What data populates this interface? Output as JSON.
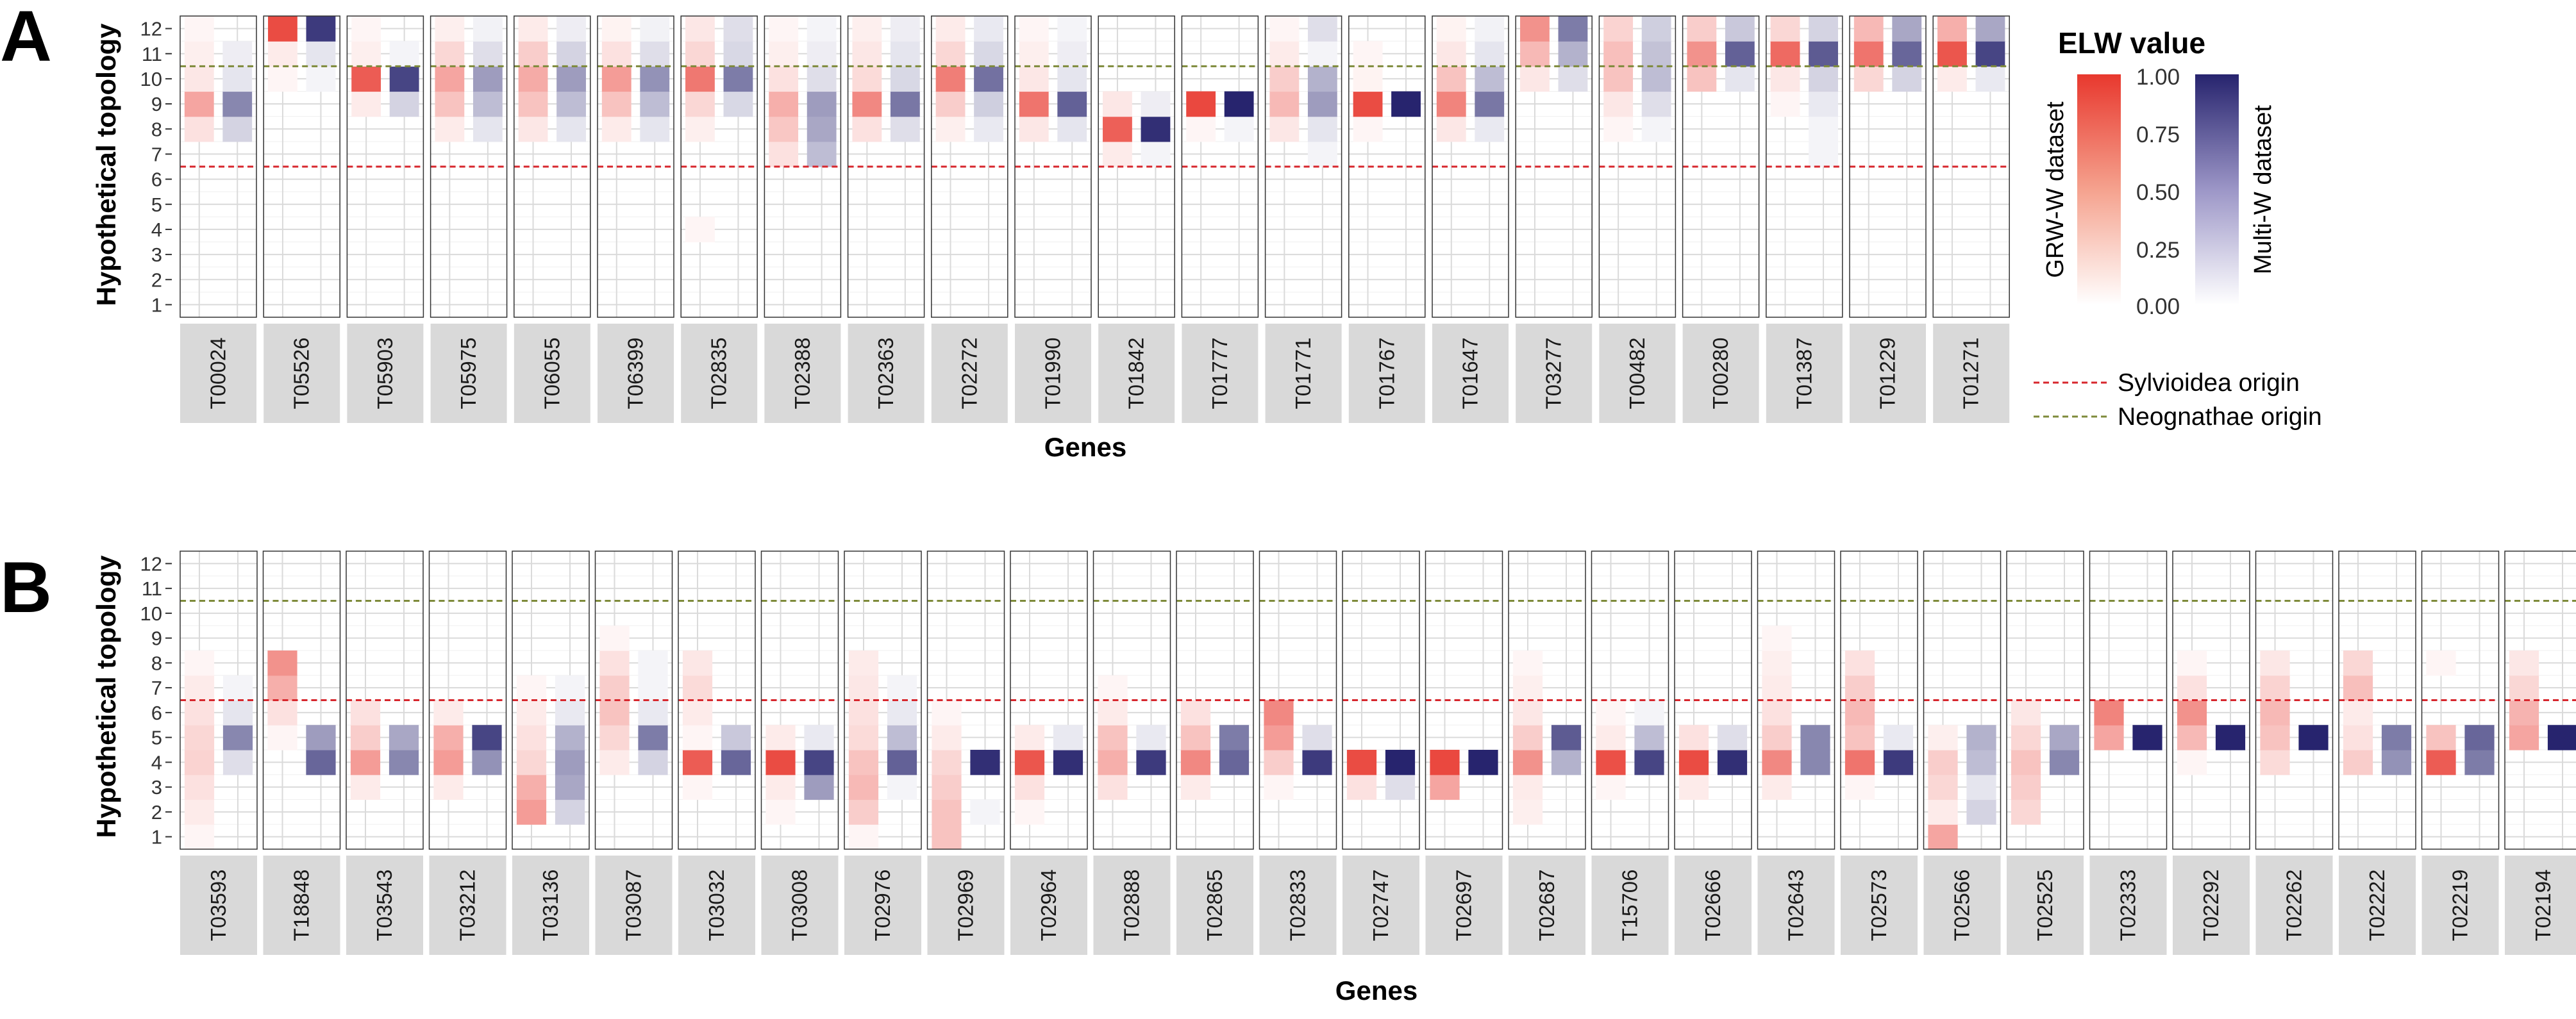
{
  "figure": {
    "panel_labels": [
      "A",
      "B"
    ],
    "x_axis_title": "Genes",
    "y_axis_title": "Hypothetical topology",
    "y_ticks": [
      1,
      2,
      3,
      4,
      5,
      6,
      7,
      8,
      9,
      10,
      11,
      12
    ]
  },
  "legend": {
    "title": "ELW value",
    "ticks": [
      "1.00",
      "0.75",
      "0.50",
      "0.25",
      "0.00"
    ],
    "grw_label": "GRW-W dataset",
    "multi_label": "Multi-W dataset",
    "grw_color": "#E8382E",
    "multi_color": "#27246E",
    "sylvioidea_label": "Sylvioidea origin",
    "neognathae_label": "Neognathae origin",
    "sylvioidea_color": "#D7262C",
    "neognathae_color": "#7E8A3A"
  },
  "chart_data": [
    {
      "type": "heatmap",
      "panel": "A",
      "xlabel": "Genes",
      "ylabel": "Hypothetical topology",
      "ylim": [
        0.5,
        12.5
      ],
      "reference_lines": {
        "sylvioidea_origin": 6.5,
        "neognathae_origin": 10.5
      },
      "genes": [
        "T00024",
        "T05526",
        "T05903",
        "T05975",
        "T06055",
        "T06399",
        "T02835",
        "T02388",
        "T02363",
        "T02272",
        "T01990",
        "T01842",
        "T01777",
        "T01771",
        "T01767",
        "T01647",
        "T03277",
        "T00482",
        "T00280",
        "T01387",
        "T01229",
        "T01271"
      ],
      "series": [
        {
          "name": "GRW-W dataset",
          "values": [
            {
              "12": 0.05,
              "11": 0.08,
              "10": 0.12,
              "9": 0.45,
              "8": 0.15
            },
            {
              "12": 0.9,
              "11": 0.1,
              "10": 0.05
            },
            {
              "12": 0.05,
              "11": 0.08,
              "10": 0.82,
              "9": 0.1
            },
            {
              "12": 0.08,
              "11": 0.2,
              "10": 0.45,
              "9": 0.3,
              "8": 0.1
            },
            {
              "12": 0.1,
              "11": 0.25,
              "10": 0.42,
              "9": 0.3,
              "8": 0.12
            },
            {
              "12": 0.06,
              "11": 0.15,
              "10": 0.5,
              "9": 0.3,
              "8": 0.1
            },
            {
              "12": 0.12,
              "11": 0.2,
              "10": 0.68,
              "9": 0.2,
              "8": 0.08,
              "4": 0.05
            },
            {
              "12": 0.05,
              "11": 0.08,
              "10": 0.15,
              "9": 0.4,
              "8": 0.28,
              "7": 0.15
            },
            {
              "12": 0.08,
              "11": 0.12,
              "10": 0.18,
              "9": 0.6,
              "8": 0.15
            },
            {
              "12": 0.1,
              "11": 0.2,
              "10": 0.65,
              "9": 0.25,
              "8": 0.08
            },
            {
              "12": 0.05,
              "11": 0.08,
              "10": 0.12,
              "9": 0.7,
              "8": 0.12
            },
            {
              "9": 0.12,
              "8": 0.8,
              "7": 0.1
            },
            {
              "9": 0.92,
              "8": 0.05
            },
            {
              "12": 0.05,
              "11": 0.1,
              "10": 0.25,
              "9": 0.35,
              "8": 0.12
            },
            {
              "11": 0.05,
              "10": 0.06,
              "9": 0.9,
              "8": 0.05
            },
            {
              "12": 0.06,
              "11": 0.12,
              "10": 0.3,
              "9": 0.62,
              "8": 0.12
            },
            {
              "12": 0.55,
              "11": 0.35,
              "10": 0.12
            },
            {
              "12": 0.22,
              "11": 0.32,
              "10": 0.3,
              "9": 0.12,
              "8": 0.05
            },
            {
              "12": 0.25,
              "11": 0.55,
              "10": 0.3
            },
            {
              "12": 0.2,
              "11": 0.75,
              "10": 0.12,
              "9": 0.05
            },
            {
              "12": 0.35,
              "11": 0.7,
              "10": 0.2
            },
            {
              "12": 0.4,
              "11": 0.85,
              "10": 0.1
            }
          ]
        },
        {
          "name": "Multi-W dataset",
          "values": [
            {
              "11": 0.08,
              "10": 0.12,
              "9": 0.55,
              "8": 0.2
            },
            {
              "12": 0.9,
              "11": 0.12,
              "10": 0.05
            },
            {
              "11": 0.05,
              "10": 0.85,
              "9": 0.2
            },
            {
              "12": 0.06,
              "11": 0.15,
              "10": 0.45,
              "9": 0.3,
              "8": 0.12
            },
            {
              "12": 0.08,
              "11": 0.2,
              "10": 0.45,
              "9": 0.3,
              "8": 0.12
            },
            {
              "12": 0.06,
              "11": 0.15,
              "10": 0.5,
              "9": 0.3,
              "8": 0.12
            },
            {
              "12": 0.15,
              "11": 0.18,
              "10": 0.6,
              "9": 0.18
            },
            {
              "12": 0.05,
              "11": 0.08,
              "10": 0.15,
              "9": 0.45,
              "8": 0.4,
              "7": 0.3
            },
            {
              "12": 0.08,
              "11": 0.12,
              "10": 0.18,
              "9": 0.62,
              "8": 0.15
            },
            {
              "12": 0.1,
              "11": 0.18,
              "10": 0.65,
              "9": 0.22,
              "8": 0.1
            },
            {
              "12": 0.05,
              "11": 0.08,
              "10": 0.12,
              "9": 0.72,
              "8": 0.12
            },
            {
              "9": 0.08,
              "8": 0.95,
              "7": 0.05
            },
            {
              "9": 1.0,
              "8": 0.05
            },
            {
              "12": 0.15,
              "11": 0.05,
              "10": 0.35,
              "9": 0.45,
              "8": 0.12,
              "7": 0.05
            },
            {
              "9": 1.0
            },
            {
              "12": 0.06,
              "11": 0.12,
              "10": 0.3,
              "9": 0.62,
              "8": 0.1
            },
            {
              "12": 0.6,
              "11": 0.35,
              "10": 0.15
            },
            {
              "12": 0.22,
              "11": 0.28,
              "10": 0.3,
              "9": 0.15,
              "8": 0.05
            },
            {
              "12": 0.25,
              "11": 0.72,
              "10": 0.12
            },
            {
              "12": 0.2,
              "11": 0.75,
              "10": 0.2,
              "9": 0.1,
              "8": 0.05,
              "7": 0.05
            },
            {
              "12": 0.4,
              "11": 0.7,
              "10": 0.2
            },
            {
              "12": 0.4,
              "11": 0.85,
              "10": 0.1
            }
          ]
        }
      ]
    },
    {
      "type": "heatmap",
      "panel": "B",
      "xlabel": "Genes",
      "ylabel": "Hypothetical topology",
      "ylim": [
        0.5,
        12.5
      ],
      "reference_lines": {
        "sylvioidea_origin": 6.5,
        "neognathae_origin": 10.5
      },
      "genes": [
        "T03593",
        "T18848",
        "T03543",
        "T03212",
        "T03136",
        "T03087",
        "T03032",
        "T03008",
        "T02976",
        "T02969",
        "T02964",
        "T02888",
        "T02865",
        "T02833",
        "T02747",
        "T02697",
        "T02687",
        "T15706",
        "T02666",
        "T02643",
        "T02573",
        "T02566",
        "T02525",
        "T02333",
        "T02292",
        "T02262",
        "T02222",
        "T02219",
        "T02194"
      ],
      "series": [
        {
          "name": "GRW-W dataset",
          "values": [
            {
              "8": 0.05,
              "7": 0.1,
              "6": 0.15,
              "5": 0.2,
              "4": 0.22,
              "3": 0.15,
              "2": 0.1,
              "1": 0.05
            },
            {
              "8": 0.55,
              "7": 0.4,
              "6": 0.15,
              "5": 0.05
            },
            {
              "6": 0.15,
              "5": 0.25,
              "4": 0.5,
              "3": 0.1
            },
            {
              "6": 0.1,
              "5": 0.4,
              "4": 0.5,
              "3": 0.1
            },
            {
              "7": 0.05,
              "6": 0.1,
              "5": 0.15,
              "4": 0.2,
              "3": 0.4,
              "2": 0.5
            },
            {
              "9": 0.05,
              "8": 0.15,
              "7": 0.25,
              "6": 0.3,
              "5": 0.2,
              "4": 0.1
            },
            {
              "8": 0.12,
              "7": 0.18,
              "6": 0.1,
              "5": 0.05,
              "4": 0.82,
              "3": 0.05
            },
            {
              "5": 0.1,
              "4": 0.9,
              "3": 0.1,
              "2": 0.05
            },
            {
              "8": 0.1,
              "7": 0.12,
              "6": 0.15,
              "5": 0.18,
              "4": 0.3,
              "3": 0.35,
              "2": 0.25,
              "1": 0.05
            },
            {
              "6": 0.05,
              "5": 0.1,
              "4": 0.2,
              "3": 0.25,
              "2": 0.3,
              "1": 0.3
            },
            {
              "5": 0.1,
              "4": 0.85,
              "3": 0.15,
              "2": 0.05
            },
            {
              "7": 0.05,
              "6": 0.1,
              "5": 0.3,
              "4": 0.4,
              "3": 0.15
            },
            {
              "6": 0.15,
              "5": 0.3,
              "4": 0.6,
              "3": 0.1
            },
            {
              "6": 0.6,
              "5": 0.5,
              "4": 0.25,
              "3": 0.05
            },
            {
              "4": 0.9,
              "3": 0.15
            },
            {
              "4": 0.92,
              "3": 0.45
            },
            {
              "8": 0.05,
              "7": 0.08,
              "6": 0.12,
              "5": 0.25,
              "4": 0.55,
              "3": 0.1,
              "2": 0.08
            },
            {
              "6": 0.05,
              "5": 0.1,
              "4": 0.88,
              "3": 0.05
            },
            {
              "5": 0.15,
              "4": 0.9,
              "3": 0.1
            },
            {
              "9": 0.05,
              "8": 0.08,
              "7": 0.1,
              "6": 0.15,
              "5": 0.25,
              "4": 0.6,
              "3": 0.1
            },
            {
              "8": 0.15,
              "7": 0.25,
              "6": 0.35,
              "5": 0.3,
              "4": 0.7,
              "3": 0.05
            },
            {
              "5": 0.08,
              "4": 0.25,
              "3": 0.2,
              "2": 0.1,
              "1": 0.45
            },
            {
              "6": 0.12,
              "5": 0.2,
              "4": 0.3,
              "3": 0.25,
              "2": 0.2
            },
            {
              "6": 0.62,
              "5": 0.45
            },
            {
              "8": 0.05,
              "7": 0.15,
              "6": 0.55,
              "5": 0.35,
              "4": 0.05
            },
            {
              "8": 0.12,
              "7": 0.22,
              "6": 0.35,
              "5": 0.3,
              "4": 0.18
            },
            {
              "8": 0.2,
              "7": 0.32,
              "6": 0.1,
              "5": 0.15,
              "4": 0.25
            },
            {
              "8": 0.05,
              "5": 0.3,
              "4": 0.82
            },
            {
              "8": 0.12,
              "7": 0.2,
              "6": 0.38,
              "5": 0.45
            }
          ]
        },
        {
          "name": "Multi-W dataset",
          "values": [
            {
              "7": 0.05,
              "6": 0.12,
              "5": 0.55,
              "4": 0.15
            },
            {
              "5": 0.45,
              "4": 0.7
            },
            {
              "5": 0.4,
              "4": 0.55
            },
            {
              "5": 0.85,
              "4": 0.5
            },
            {
              "7": 0.05,
              "6": 0.1,
              "5": 0.35,
              "4": 0.45,
              "3": 0.4,
              "2": 0.2
            },
            {
              "8": 0.05,
              "7": 0.05,
              "6": 0.1,
              "5": 0.6,
              "4": 0.2
            },
            {
              "5": 0.25,
              "4": 0.7
            },
            {
              "5": 0.1,
              "4": 0.85,
              "3": 0.45
            },
            {
              "7": 0.05,
              "6": 0.1,
              "5": 0.3,
              "4": 0.72,
              "3": 0.05
            },
            {
              "4": 0.95,
              "2": 0.05
            },
            {
              "5": 0.1,
              "4": 0.95
            },
            {
              "5": 0.1,
              "4": 0.9
            },
            {
              "5": 0.6,
              "4": 0.7
            },
            {
              "5": 0.15,
              "4": 0.9
            },
            {
              "4": 1.0,
              "3": 0.15
            },
            {
              "4": 1.0
            },
            {
              "5": 0.75,
              "4": 0.35
            },
            {
              "6": 0.05,
              "5": 0.3,
              "4": 0.85
            },
            {
              "5": 0.15,
              "4": 0.95
            },
            {
              "5": 0.55,
              "4": 0.55
            },
            {
              "5": 0.1,
              "4": 0.9
            },
            {
              "5": 0.35,
              "4": 0.3,
              "3": 0.12,
              "2": 0.2
            },
            {
              "5": 0.4,
              "4": 0.55
            },
            {
              "5": 1.0
            },
            {
              "5": 1.0
            },
            {
              "5": 1.0
            },
            {
              "5": 0.6,
              "4": 0.5
            },
            {
              "5": 0.7,
              "4": 0.6
            },
            {
              "5": 1.0
            }
          ]
        }
      ]
    }
  ]
}
